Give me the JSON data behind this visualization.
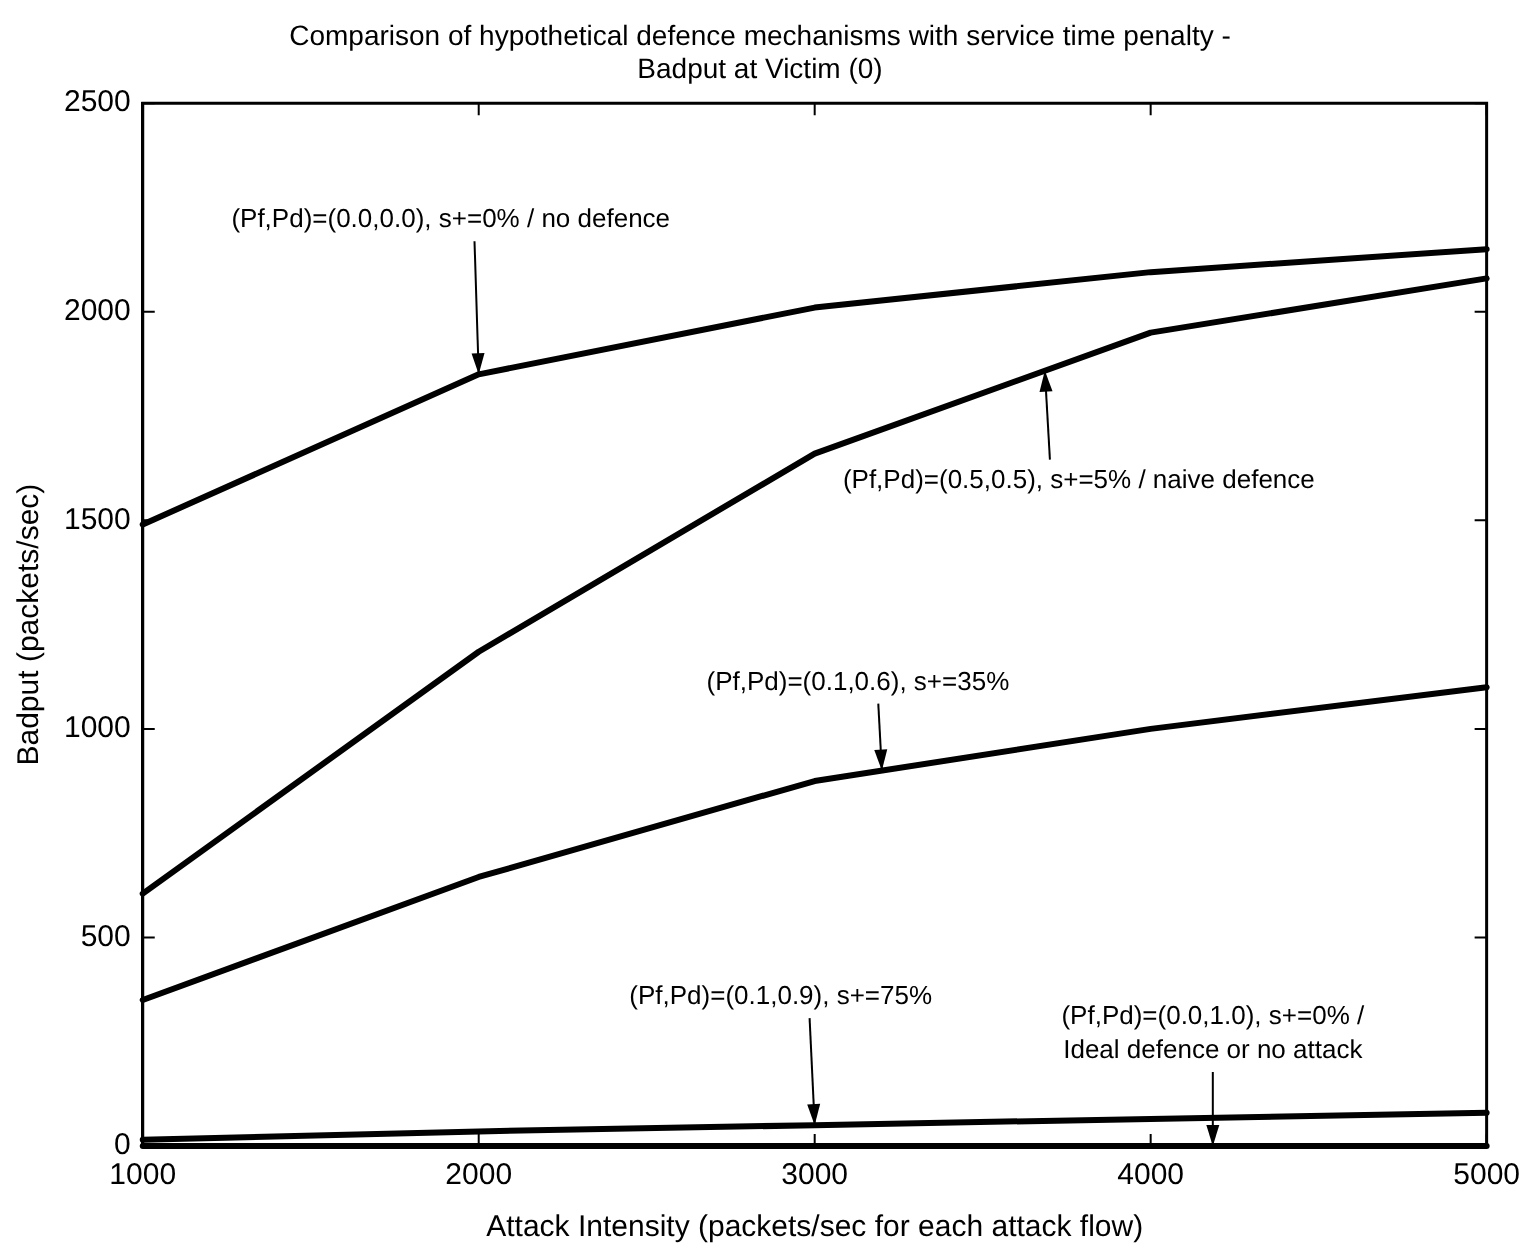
{
  "chart_data": {
    "type": "line",
    "title": "Comparison of hypothetical defence mechanisms with service time penalty -\nBadput at Victim (0)",
    "xlabel": "Attack Intensity (packets/sec for each attack flow)",
    "ylabel": "Badput (packets/sec)",
    "x": [
      1000,
      2000,
      3000,
      4000,
      5000
    ],
    "series": [
      {
        "color": "#000000",
        "values": [
          1490,
          1850,
          2010,
          2095,
          2150
        ]
      },
      {
        "color": "#000000",
        "values": [
          605,
          1185,
          1660,
          1950,
          2080
        ]
      },
      {
        "color": "#000000",
        "values": [
          350,
          645,
          875,
          1000,
          1100
        ]
      },
      {
        "color": "#000000",
        "values": [
          15,
          35,
          50,
          65,
          80
        ]
      },
      {
        "color": "#000000",
        "values": [
          0,
          0,
          0,
          0,
          0
        ]
      }
    ],
    "xlim": [
      1000,
      5000
    ],
    "xticks": [
      1000,
      2000,
      3000,
      4000,
      5000
    ],
    "ylim": [
      0,
      2500
    ],
    "yticks": [
      0,
      500,
      1000,
      1500,
      2000,
      2500
    ],
    "grid": false,
    "legend": false,
    "marker": "none",
    "line_style": "solid",
    "annotations": [
      {
        "text": "(Pf,Pd)=(0.0,0.0), s+=0% / no defence",
        "x": 2000,
        "y": 1850
      },
      {
        "text": "(Pf,Pd)=(0.5,0.5), s+=5% / naive defence",
        "x": 3685,
        "y": 1859
      },
      {
        "text": "(Pf,Pd)=(0.1,0.6), s+=35%",
        "x": 3200,
        "y": 900
      },
      {
        "text": "(Pf,Pd)=(0.1,0.9), s+=75%",
        "x": 3000,
        "y": 50
      },
      {
        "text": "(Pf,Pd)=(0.0,1.0), s+=0% /\nIdeal defence or no attack",
        "x": 4185,
        "y": 0
      }
    ]
  }
}
